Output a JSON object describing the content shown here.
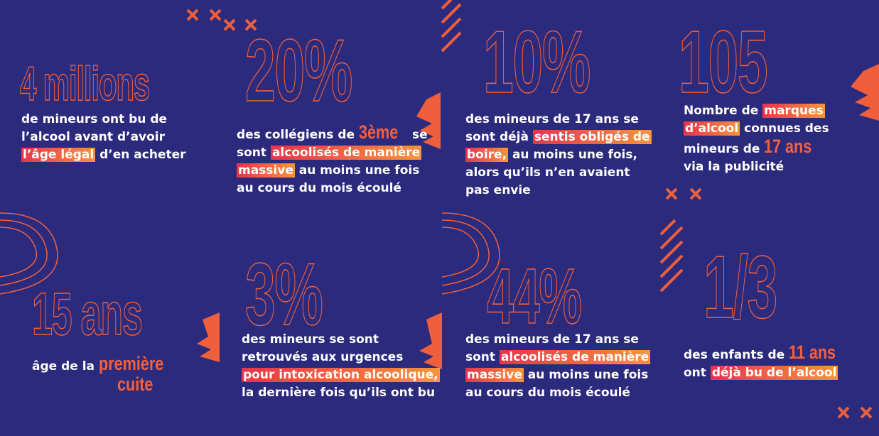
{
  "cells": [
    {
      "stat": "4 millions",
      "lines": [
        [
          {
            "text": "de mineurs ont bu de"
          }
        ],
        [
          {
            "text": "l’alcool avant d’avoir"
          }
        ],
        [
          {
            "text": "l’âge légal",
            "style": "highlight"
          },
          {
            "text": " d’en acheter"
          }
        ]
      ]
    },
    {
      "stat": "20%",
      "lines": [
        [
          {
            "text": "des collégiens de "
          },
          {
            "text": "3ème",
            "style": "big"
          },
          {
            "text": " se"
          }
        ],
        [
          {
            "text": "sont "
          },
          {
            "text": "alcoolisés de manière",
            "style": "highlight"
          }
        ],
        [
          {
            "text": "massive",
            "style": "highlight"
          },
          {
            "text": " au moins une fois"
          }
        ],
        [
          {
            "text": "au cours du mois écoulé"
          }
        ]
      ]
    },
    {
      "stat": "10%",
      "lines": [
        [
          {
            "text": "des mineurs de 17 ans se"
          }
        ],
        [
          {
            "text": "sont déjà "
          },
          {
            "text": "sentis obligés de",
            "style": "highlight"
          }
        ],
        [
          {
            "text": "boire,",
            "style": "highlight"
          },
          {
            "text": " au moins une fois,"
          }
        ],
        [
          {
            "text": "alors qu’ils n’en avaient"
          }
        ],
        [
          {
            "text": "pas envie"
          }
        ]
      ]
    },
    {
      "stat": "105",
      "lines": [
        [
          {
            "text": "Nombre de "
          },
          {
            "text": "marques",
            "style": "highlight"
          }
        ],
        [
          {
            "text": "d’alcool",
            "style": "highlight"
          },
          {
            "text": " connues des"
          }
        ],
        [
          {
            "text": "mineurs de "
          },
          {
            "text": "17 ans",
            "style": "big"
          }
        ],
        [
          {
            "text": "via la publicité"
          }
        ]
      ]
    },
    {
      "stat": "15 ans",
      "lines": [
        [
          {
            "text": "âge de la "
          },
          {
            "text": "première",
            "style": "big"
          }
        ],
        [
          {
            "text": "cuite",
            "style": "big-indent"
          }
        ]
      ]
    },
    {
      "stat": "3%",
      "lines": [
        [
          {
            "text": "des mineurs se sont"
          }
        ],
        [
          {
            "text": "retrouvés aux urgences"
          }
        ],
        [
          {
            "text": "pour intoxication alcoolique,",
            "style": "highlight"
          }
        ],
        [
          {
            "text": "la dernière fois qu’ils ont bu"
          }
        ]
      ]
    },
    {
      "stat": "44%",
      "lines": [
        [
          {
            "text": "des mineurs de 17 ans se"
          }
        ],
        [
          {
            "text": "sont "
          },
          {
            "text": "alcoolisés de manière",
            "style": "highlight"
          }
        ],
        [
          {
            "text": "massive",
            "style": "highlight"
          },
          {
            "text": " au moins une fois"
          }
        ],
        [
          {
            "text": "au cours du mois écoulé"
          }
        ]
      ]
    },
    {
      "stat": "1/3",
      "lines": [
        [
          {
            "text": "des enfants de "
          },
          {
            "text": "11 ans",
            "style": "big"
          }
        ],
        [
          {
            "text": "ont "
          },
          {
            "text": "déjà bu de l’alcool",
            "style": "highlight"
          }
        ]
      ]
    }
  ]
}
